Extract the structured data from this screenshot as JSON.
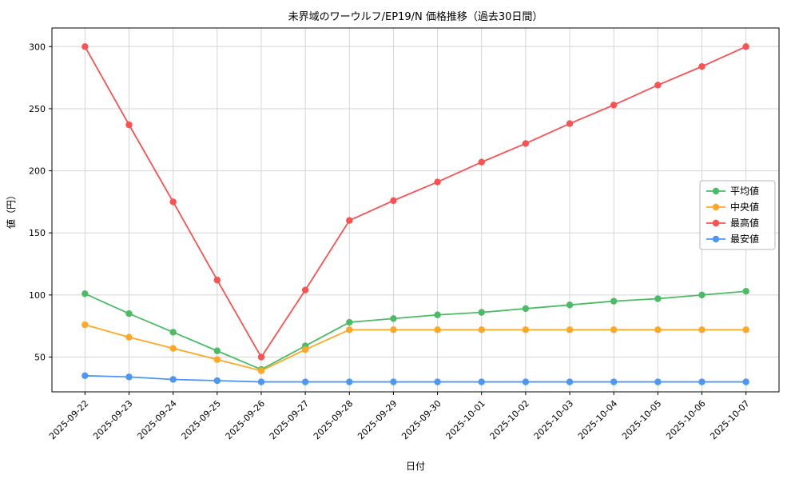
{
  "chart_data": {
    "type": "line",
    "title": "未界域のワーウルフ/EP19/N 価格推移（過去30日間）",
    "xlabel": "日付",
    "ylabel": "値（円）",
    "x": [
      "2025-09-22",
      "2025-09-23",
      "2025-09-24",
      "2025-09-25",
      "2025-09-26",
      "2025-09-27",
      "2025-09-28",
      "2025-09-29",
      "2025-09-30",
      "2025-10-01",
      "2025-10-02",
      "2025-10-03",
      "2025-10-04",
      "2025-10-05",
      "2025-10-06",
      "2025-10-07"
    ],
    "ylim": [
      22,
      315
    ],
    "yticks": [
      50,
      100,
      150,
      200,
      250,
      300
    ],
    "grid": true,
    "legend_position": "center right",
    "colors": {
      "grid": "#d5d5d5",
      "spine": "#000000",
      "legend_border": "#b5b5b5"
    },
    "series": [
      {
        "key": "average",
        "name": "平均値",
        "color": "#4cbb65",
        "values": [
          101,
          85,
          70,
          55,
          40,
          59,
          78,
          81,
          84,
          86,
          89,
          92,
          95,
          97,
          100,
          103
        ]
      },
      {
        "key": "median",
        "name": "中央値",
        "color": "#ffa726",
        "values": [
          76,
          66,
          57,
          48,
          39,
          56,
          72,
          72,
          72,
          72,
          72,
          72,
          72,
          72,
          72,
          72
        ]
      },
      {
        "key": "highest",
        "name": "最高値",
        "color": "#fa5252",
        "values": [
          300,
          237,
          175,
          112,
          50,
          104,
          160,
          176,
          191,
          207,
          222,
          238,
          253,
          269,
          284,
          300
        ]
      },
      {
        "key": "lowest",
        "name": "最安値",
        "color": "#4d97f2",
        "values": [
          35,
          34,
          32,
          31,
          30,
          30,
          30,
          30,
          30,
          30,
          30,
          30,
          30,
          30,
          30,
          30
        ]
      }
    ]
  }
}
